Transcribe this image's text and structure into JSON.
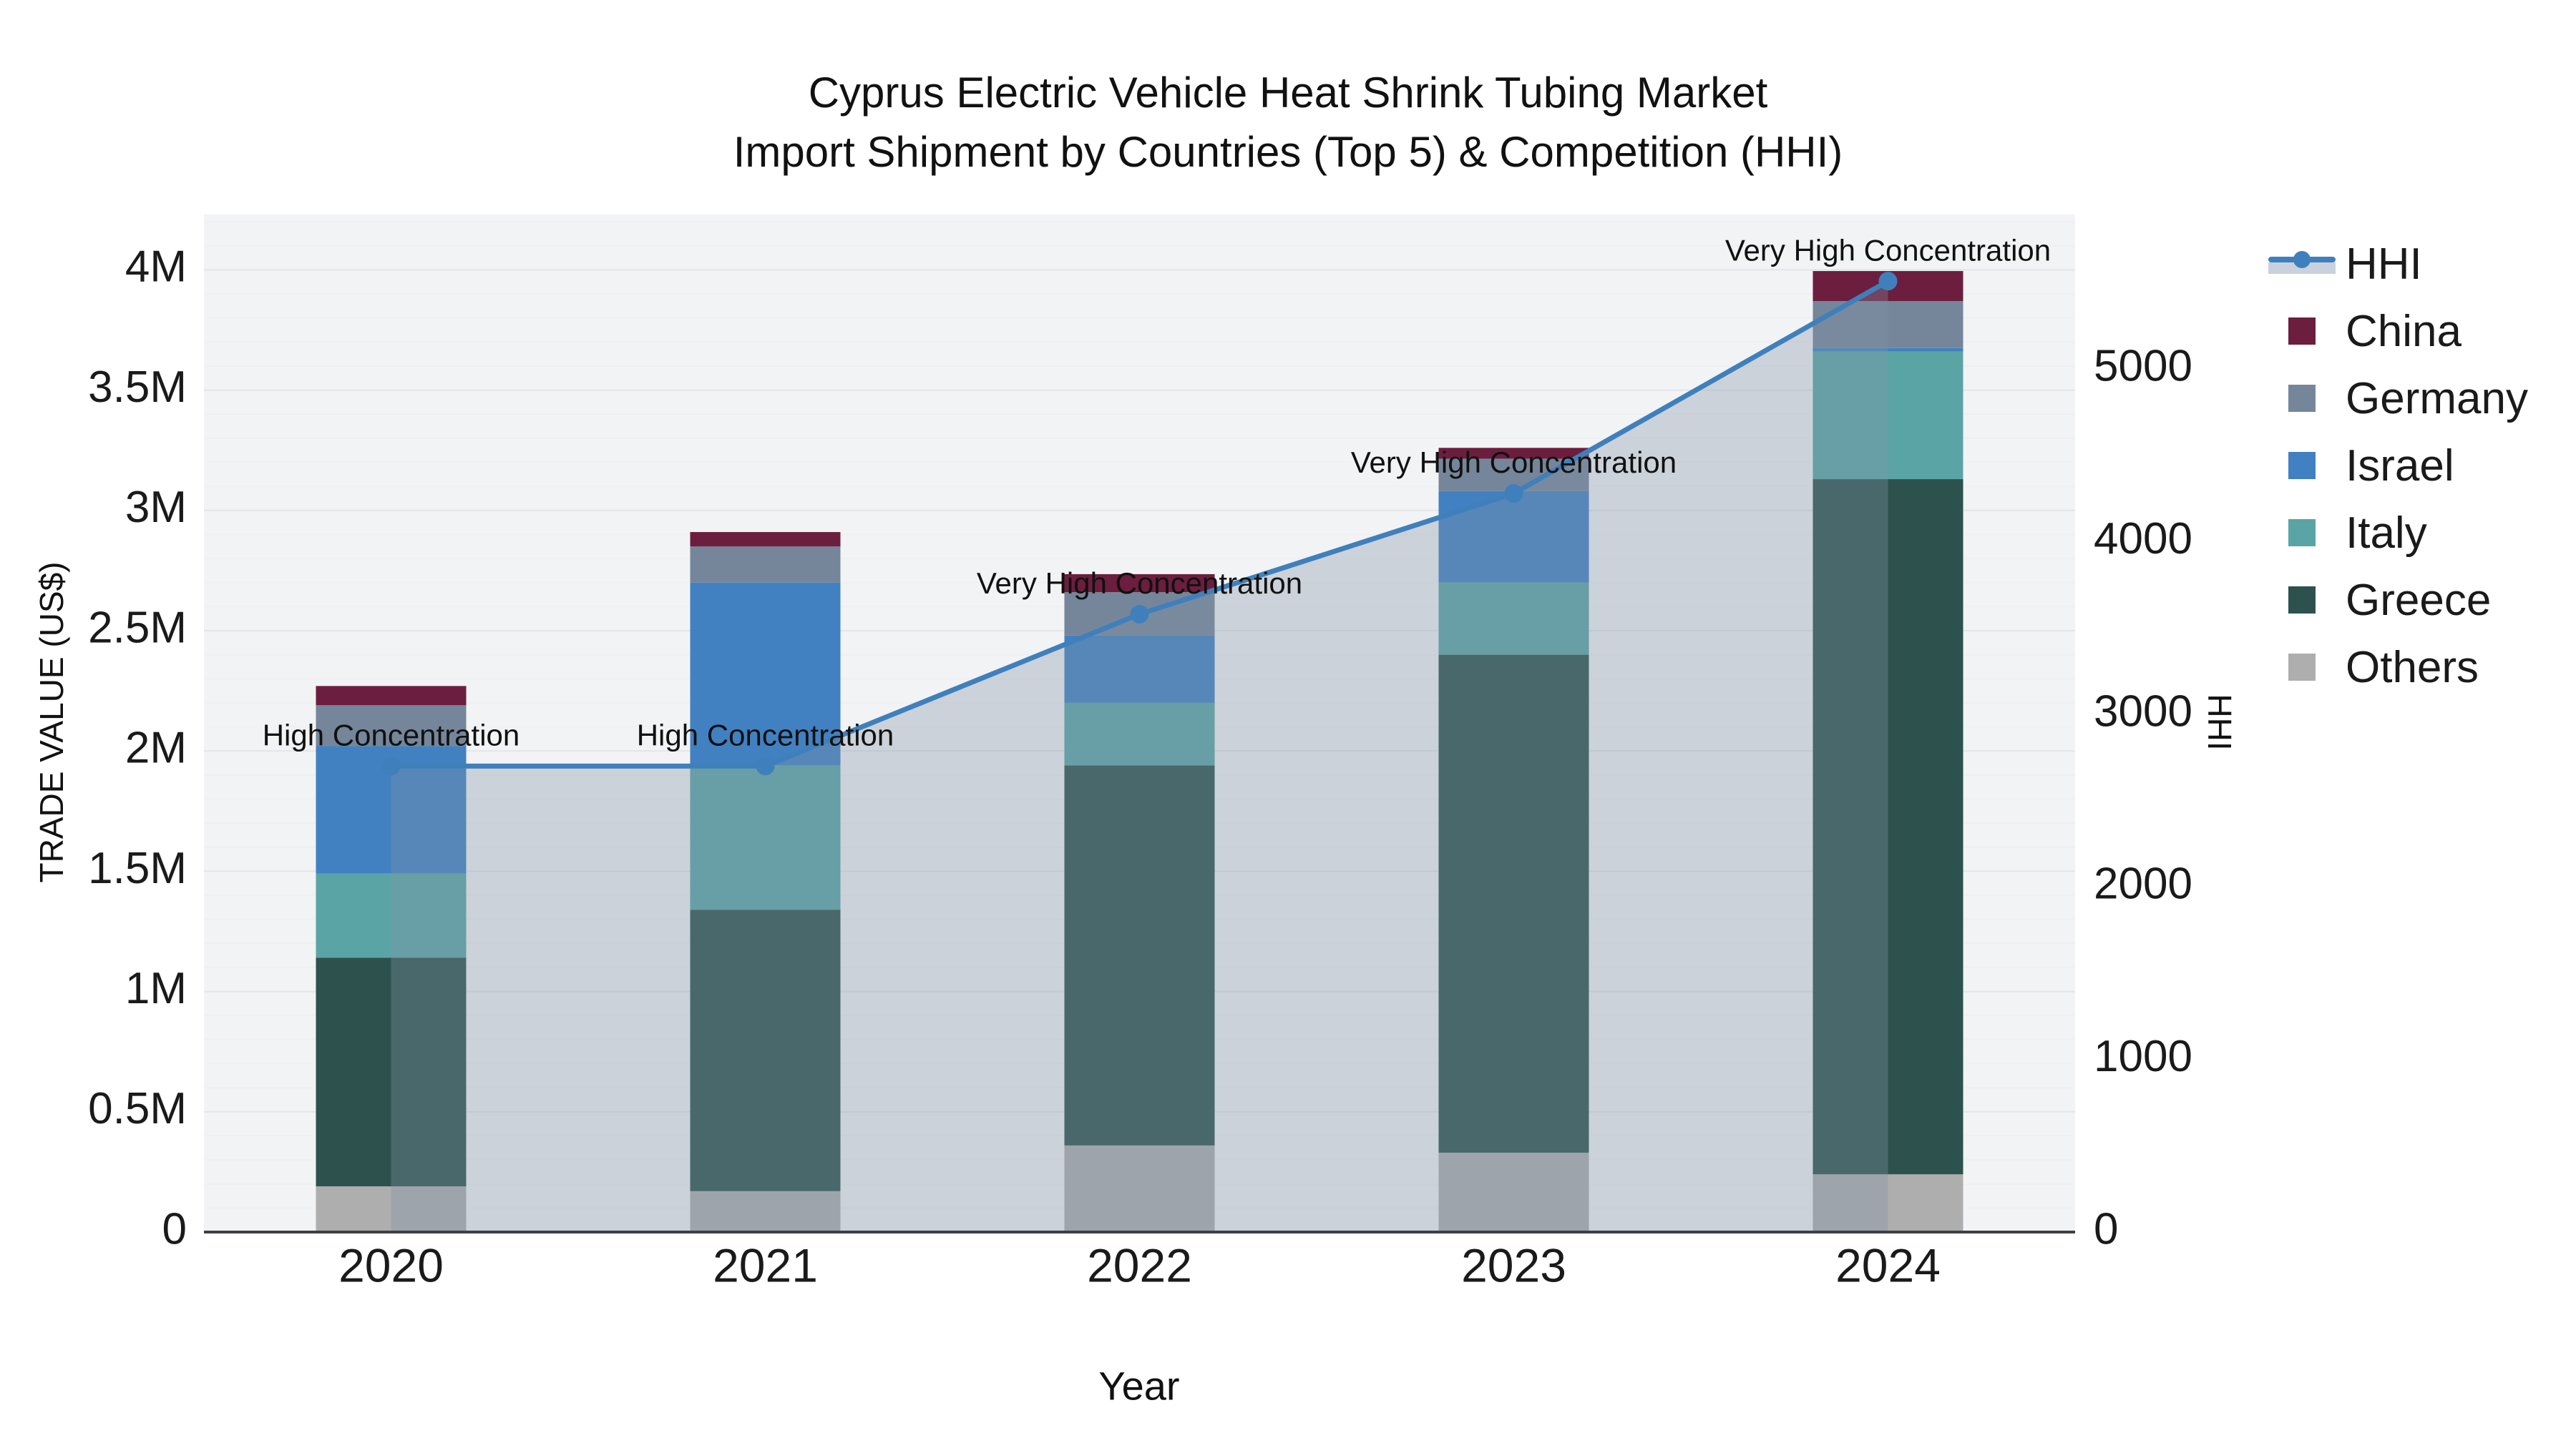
{
  "title": {
    "line1": "Cyprus Electric Vehicle Heat Shrink Tubing Market",
    "line2": "Import Shipment by Countries (Top 5) & Competition (HHI)"
  },
  "colors": {
    "page_bg": "#ffffff",
    "plot_bg": "#f2f3f4",
    "grid_major": "#e3e5e8",
    "grid_minor": "#eff0f2",
    "axis_line": "#3c4046",
    "text": "#1a1a1a",
    "hhi_line": "#3f80bc",
    "hhi_area": "rgba(130,146,167,0.34)"
  },
  "legend": {
    "items": [
      {
        "id": "hhi",
        "label": "HHI",
        "type": "line",
        "color": "#3f80bc"
      },
      {
        "id": "china",
        "label": "China",
        "type": "swatch",
        "color": "#6c1e3e"
      },
      {
        "id": "germany",
        "label": "Germany",
        "type": "swatch",
        "color": "#75869a"
      },
      {
        "id": "israel",
        "label": "Israel",
        "type": "swatch",
        "color": "#4181c1"
      },
      {
        "id": "italy",
        "label": "Italy",
        "type": "swatch",
        "color": "#5ba4a6"
      },
      {
        "id": "greece",
        "label": "Greece",
        "type": "swatch",
        "color": "#2d524e"
      },
      {
        "id": "others",
        "label": "Others",
        "type": "swatch",
        "color": "#aeaeae"
      }
    ]
  },
  "chart_data": {
    "type": "combo_stacked_bar_line",
    "title": "Cyprus Electric Vehicle Heat Shrink Tubing Market — Import Shipment by Countries (Top 5) & Competition (HHI)",
    "categories": [
      "2020",
      "2021",
      "2022",
      "2023",
      "2024"
    ],
    "stack_order_bottom_to_top": [
      "Others",
      "Greece",
      "Italy",
      "Israel",
      "Germany",
      "China"
    ],
    "series": [
      {
        "name": "Others",
        "color": "#aeaeae",
        "values": [
          190000,
          170000,
          360000,
          330000,
          240000
        ]
      },
      {
        "name": "Greece",
        "color": "#2d524e",
        "values": [
          950000,
          1170000,
          1580000,
          2070000,
          2890000
        ]
      },
      {
        "name": "Italy",
        "color": "#5ba4a6",
        "values": [
          350000,
          600000,
          260000,
          300000,
          530000
        ]
      },
      {
        "name": "Israel",
        "color": "#4181c1",
        "values": [
          530000,
          760000,
          280000,
          380000,
          15000
        ]
      },
      {
        "name": "Germany",
        "color": "#75869a",
        "values": [
          170000,
          150000,
          180000,
          135000,
          195000
        ]
      },
      {
        "name": "China",
        "color": "#6c1e3e",
        "values": [
          80000,
          60000,
          75000,
          45000,
          125000
        ]
      }
    ],
    "bar_totals": [
      2270000,
      2910000,
      2735000,
      3260000,
      3995000
    ],
    "line_series": {
      "name": "HHI",
      "color": "#3f80bc",
      "area_fill": "rgba(130,146,167,0.34)",
      "values": [
        2700,
        2700,
        3580,
        4280,
        5510
      ]
    },
    "annotations": [
      {
        "category": "2020",
        "text": "High Concentration"
      },
      {
        "category": "2021",
        "text": "High Concentration"
      },
      {
        "category": "2022",
        "text": "Very High Concentration"
      },
      {
        "category": "2023",
        "text": "Very High Concentration"
      },
      {
        "category": "2024",
        "text": "Very High Concentration"
      }
    ],
    "axes": {
      "left": {
        "label": "TRADE VALUE (US$)",
        "range": [
          0,
          4230000
        ],
        "ticks": [
          {
            "value": 0,
            "label": "0"
          },
          {
            "value": 500000,
            "label": "0.5M"
          },
          {
            "value": 1000000,
            "label": "1M"
          },
          {
            "value": 1500000,
            "label": "1.5M"
          },
          {
            "value": 2000000,
            "label": "2M"
          },
          {
            "value": 2500000,
            "label": "2.5M"
          },
          {
            "value": 3000000,
            "label": "3M"
          },
          {
            "value": 3500000,
            "label": "3.5M"
          },
          {
            "value": 4000000,
            "label": "4M"
          }
        ],
        "minor_grid_step": 100000
      },
      "right": {
        "label": "HHI",
        "range": [
          0,
          5896
        ],
        "ticks": [
          {
            "value": 0,
            "label": "0"
          },
          {
            "value": 1000,
            "label": "1000"
          },
          {
            "value": 2000,
            "label": "2000"
          },
          {
            "value": 3000,
            "label": "3000"
          },
          {
            "value": 4000,
            "label": "4000"
          },
          {
            "value": 5000,
            "label": "5000"
          }
        ]
      },
      "x": {
        "label": "Year"
      }
    },
    "legend_position": "right",
    "grid": true
  }
}
